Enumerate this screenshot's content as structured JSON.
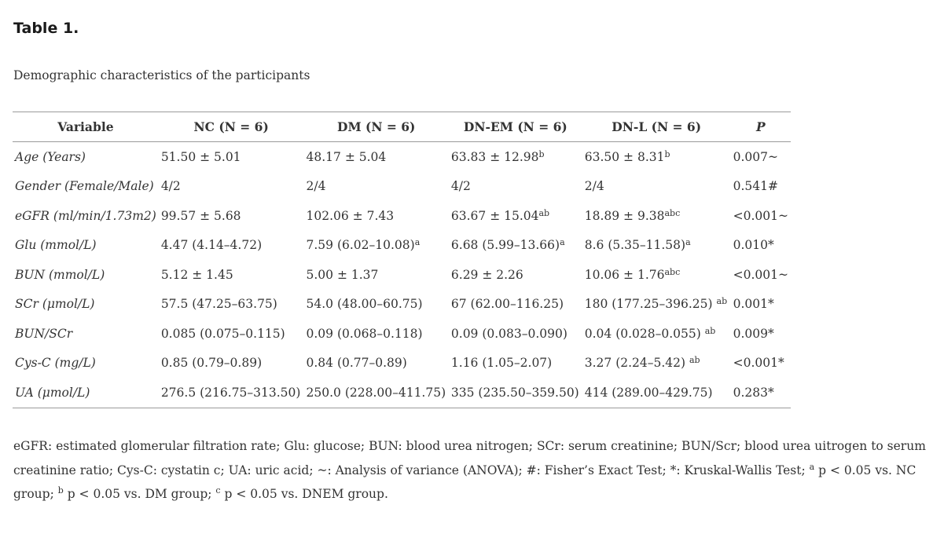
{
  "title": "Table 1.",
  "caption": "Demographic characteristics of the participants",
  "table": {
    "headers": [
      "Variable",
      "NC (N = 6)",
      "DM (N = 6)",
      "DN-EM (N = 6)",
      "DN-L (N = 6)",
      "P"
    ],
    "rows": [
      {
        "variable": "Age (Years)",
        "nc": {
          "text": "51.50 ± 5.01",
          "sup": ""
        },
        "dm": {
          "text": "48.17 ± 5.04",
          "sup": ""
        },
        "dnem": {
          "text": "63.83 ± 12.98",
          "sup": "b"
        },
        "dnl": {
          "text": "63.50 ± 8.31",
          "sup": "b"
        },
        "p": "0.007~"
      },
      {
        "variable": "Gender (Female/Male)",
        "nc": {
          "text": "4/2",
          "sup": ""
        },
        "dm": {
          "text": "2/4",
          "sup": ""
        },
        "dnem": {
          "text": "4/2",
          "sup": ""
        },
        "dnl": {
          "text": "2/4",
          "sup": ""
        },
        "p": "0.541#"
      },
      {
        "variable": "eGFR (ml/min/1.73m2)",
        "nc": {
          "text": "99.57 ± 5.68",
          "sup": ""
        },
        "dm": {
          "text": "102.06 ± 7.43",
          "sup": ""
        },
        "dnem": {
          "text": "63.67 ± 15.04",
          "sup": "ab"
        },
        "dnl": {
          "text": "18.89 ± 9.38",
          "sup": "abc"
        },
        "p": "<0.001~"
      },
      {
        "variable": "Glu (mmol/L)",
        "nc": {
          "text": "4.47 (4.14–4.72)",
          "sup": ""
        },
        "dm": {
          "text": "7.59 (6.02–10.08)",
          "sup": "a"
        },
        "dnem": {
          "text": "6.68 (5.99–13.66)",
          "sup": "a"
        },
        "dnl": {
          "text": "8.6 (5.35–11.58)",
          "sup": "a"
        },
        "p": "0.010*"
      },
      {
        "variable": "BUN (mmol/L)",
        "nc": {
          "text": "5.12 ± 1.45",
          "sup": ""
        },
        "dm": {
          "text": "5.00 ± 1.37",
          "sup": ""
        },
        "dnem": {
          "text": "6.29 ± 2.26",
          "sup": ""
        },
        "dnl": {
          "text": "10.06 ± 1.76",
          "sup": "abc"
        },
        "p": "<0.001~"
      },
      {
        "variable": "SCr (μmol/L)",
        "nc": {
          "text": "57.5 (47.25–63.75)",
          "sup": ""
        },
        "dm": {
          "text": "54.0 (48.00–60.75)",
          "sup": ""
        },
        "dnem": {
          "text": "67 (62.00–116.25)",
          "sup": ""
        },
        "dnl": {
          "text": "180 (177.25–396.25) ",
          "sup": "ab"
        },
        "p": "0.001*"
      },
      {
        "variable": "BUN/SCr",
        "nc": {
          "text": "0.085 (0.075–0.115)",
          "sup": ""
        },
        "dm": {
          "text": "0.09 (0.068–0.118)",
          "sup": ""
        },
        "dnem": {
          "text": "0.09 (0.083–0.090)",
          "sup": ""
        },
        "dnl": {
          "text": "0.04 (0.028–0.055) ",
          "sup": "ab"
        },
        "p": "0.009*"
      },
      {
        "variable": "Cys-C (mg/L)",
        "nc": {
          "text": "0.85 (0.79–0.89)",
          "sup": ""
        },
        "dm": {
          "text": "0.84 (0.77–0.89)",
          "sup": ""
        },
        "dnem": {
          "text": "1.16 (1.05–2.07)",
          "sup": ""
        },
        "dnl": {
          "text": "3.27 (2.24–5.42) ",
          "sup": "ab"
        },
        "p": "<0.001*"
      },
      {
        "variable": "UA (μmol/L)",
        "nc": {
          "text": "276.5 (216.75–313.50)",
          "sup": ""
        },
        "dm": {
          "text": "250.0 (228.00–411.75)",
          "sup": ""
        },
        "dnem": {
          "text": "335 (235.50–359.50)",
          "sup": ""
        },
        "dnl": {
          "text": "414 (289.00–429.75)",
          "sup": ""
        },
        "p": "0.283*"
      }
    ]
  },
  "footnote": {
    "part1": "eGFR: estimated glomerular filtration rate; Glu: glucose; BUN: blood urea nitrogen; SCr: serum creatinine; BUN/Scr; blood urea uitrogen to serum creatinine ratio; Cys-C: cystatin c; UA: uric acid; ~: Analysis of variance (ANOVA); #: Fisher’s Exact Test; *: Kruskal-Wallis Test; ",
    "sup_a": "a",
    "part2": " p < 0.05 vs. NC group; ",
    "sup_b": "b",
    "part3": " p < 0.05 vs. DM group; ",
    "sup_c": "c",
    "part4": " p < 0.05 vs. DNEM group."
  }
}
